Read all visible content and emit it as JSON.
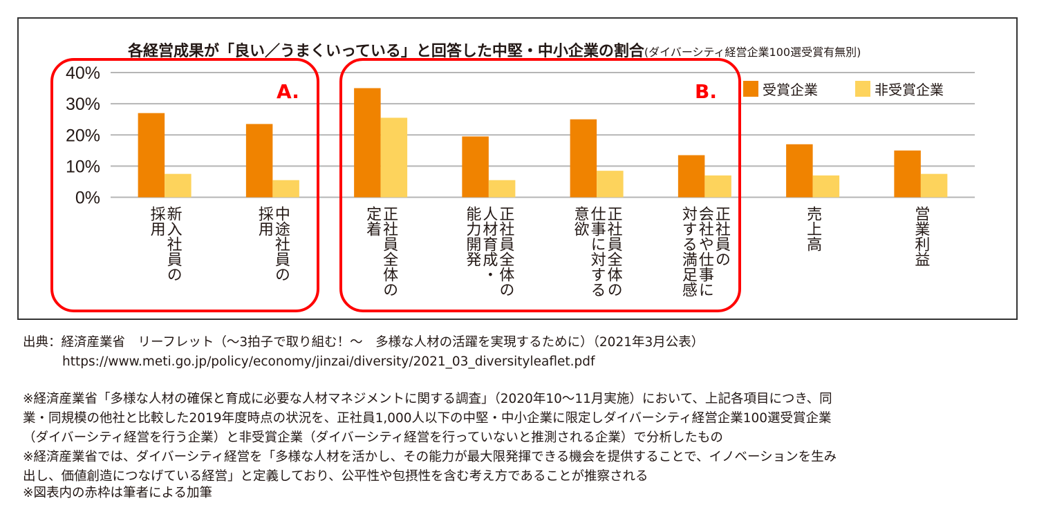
{
  "chart_data": {
    "type": "bar",
    "title": "各経営成果が「良い／うまくいっている」と回答した中堅・中小企業の割合",
    "subtitle": "(ダイバーシティ経営企業100選受賞有無別)",
    "categories": [
      "新入社員の\n採用",
      "中途社員の\n採用",
      "正社員全体の\n定着",
      "正社員全体の\n人材育成・\n能力開発",
      "正社員全体の\n仕事に対する\n意欲",
      "正社員の\n会社や仕事に\n対する満足感",
      "売上高",
      "営業利益"
    ],
    "series": [
      {
        "name": "受賞企業",
        "color": "#f08300",
        "values": [
          27,
          23.5,
          35,
          19.5,
          25,
          13.5,
          17,
          15
        ]
      },
      {
        "name": "非受賞企業",
        "color": "#fdd35c",
        "values": [
          7.5,
          5.5,
          25.5,
          5.5,
          8.5,
          7,
          7,
          7.5
        ]
      }
    ],
    "yticks": [
      "0%",
      "10%",
      "20%",
      "30%",
      "40%"
    ],
    "ylim": [
      0,
      40
    ],
    "grid": true,
    "legend": "top-right",
    "annotations": [
      {
        "label": "A.",
        "color": "#ff0000",
        "categories": [
          0,
          1
        ]
      },
      {
        "label": "B.",
        "color": "#ff0000",
        "categories": [
          2,
          3,
          4,
          5
        ]
      }
    ]
  },
  "footer": {
    "source_line1": "出典：経済産業省　リーフレット（〜3拍子で取り組む！〜　多様な人材の活躍を実現するために）（2021年3月公表）",
    "source_line2": "https://www.meti.go.jp/policy/economy/jinzai/diversity/2021_03_diversityleaflet.pdf",
    "notes": [
      "※経済産業省「多様な人材の確保と育成に必要な人材マネジメントに関する調査」（2020年10〜11月実施）において、上記各項目につき、同",
      "業・同規模の他社と比較した2019年度時点の状況を、正社員1,000人以下の中堅・中小企業に限定しダイバーシティ経営企業100選受賞企業",
      "（ダイバーシティ経営を行う企業）と非受賞企業（ダイバーシティ経営を行っていないと推測される企業）で分析したもの",
      "※経済産業省では、ダイバーシティ経営を「多様な人材を活かし、その能力が最大限発揮できる機会を提供することで、イノベーションを生み",
      "出し、価値創造につなげている経営」と定義しており、公平性や包摂性を含む考え方であることが推察される",
      "※図表内の赤枠は筆者による加筆"
    ]
  }
}
